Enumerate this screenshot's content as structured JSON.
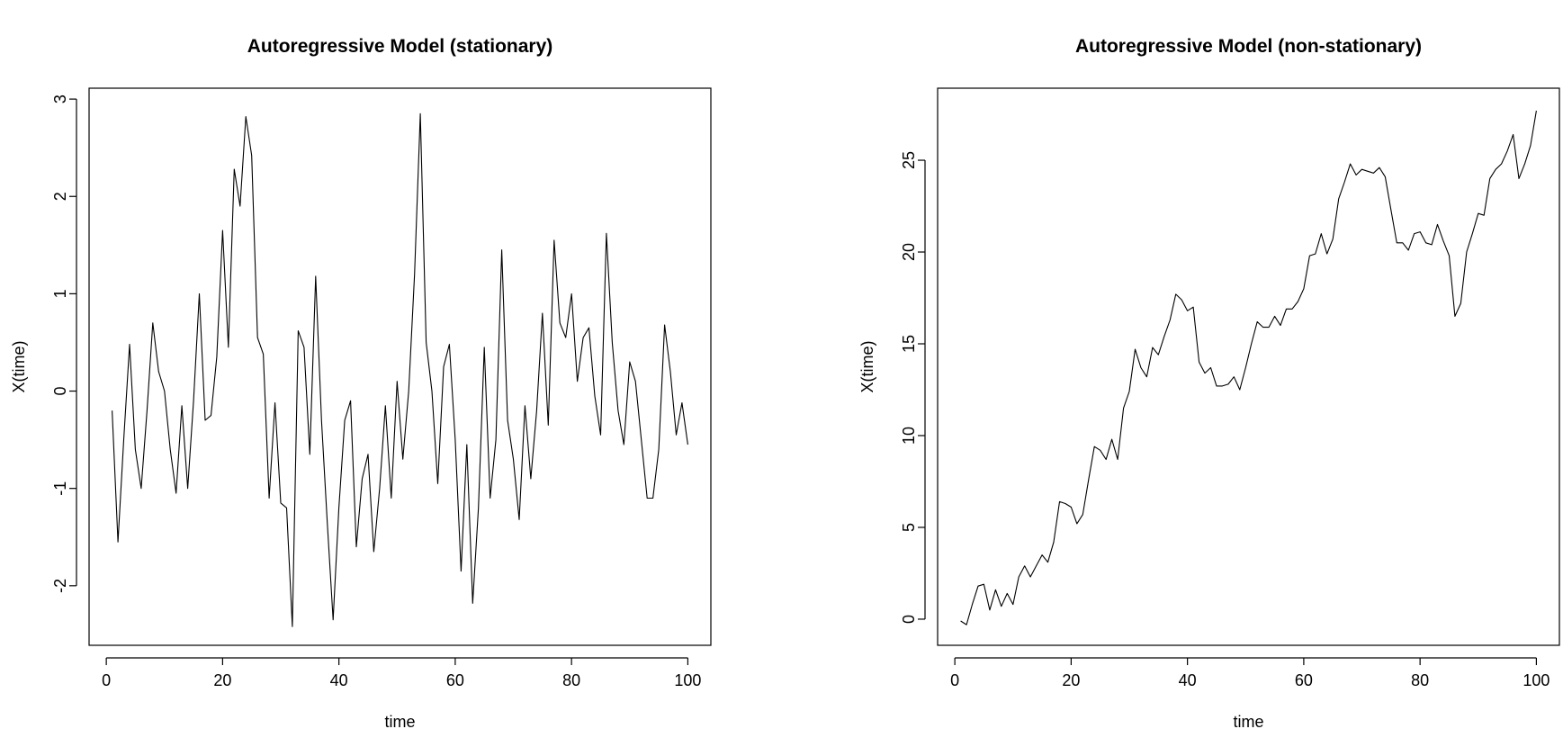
{
  "chart_data": [
    {
      "type": "line",
      "title": "Autoregressive Model (stationary)",
      "xlabel": "time",
      "ylabel": "X(time)",
      "xlim": [
        1,
        100
      ],
      "ylim": [
        -2.4,
        2.9
      ],
      "xticks": [
        0,
        20,
        40,
        60,
        80,
        100
      ],
      "yticks": [
        -2,
        -1,
        0,
        1,
        2,
        3
      ],
      "grid": false,
      "x": [
        1,
        2,
        3,
        4,
        5,
        6,
        7,
        8,
        9,
        10,
        11,
        12,
        13,
        14,
        15,
        16,
        17,
        18,
        19,
        20,
        21,
        22,
        23,
        24,
        25,
        26,
        27,
        28,
        29,
        30,
        31,
        32,
        33,
        34,
        35,
        36,
        37,
        38,
        39,
        40,
        41,
        42,
        43,
        44,
        45,
        46,
        47,
        48,
        49,
        50,
        51,
        52,
        53,
        54,
        55,
        56,
        57,
        58,
        59,
        60,
        61,
        62,
        63,
        64,
        65,
        66,
        67,
        68,
        69,
        70,
        71,
        72,
        73,
        74,
        75,
        76,
        77,
        78,
        79,
        80,
        81,
        82,
        83,
        84,
        85,
        86,
        87,
        88,
        89,
        90,
        91,
        92,
        93,
        94,
        95,
        96,
        97,
        98,
        99,
        100
      ],
      "values": [
        -0.2,
        -1.55,
        -0.5,
        0.48,
        -0.6,
        -1.0,
        -0.2,
        0.7,
        0.2,
        0.0,
        -0.6,
        -1.05,
        -0.15,
        -1.0,
        -0.1,
        1.0,
        -0.3,
        -0.25,
        0.35,
        1.65,
        0.45,
        2.28,
        1.9,
        2.82,
        2.42,
        0.55,
        0.38,
        -1.1,
        -0.12,
        -1.15,
        -1.2,
        -2.42,
        0.62,
        0.45,
        -0.65,
        1.18,
        -0.3,
        -1.35,
        -2.35,
        -1.2,
        -0.3,
        -0.1,
        -1.6,
        -0.9,
        -0.65,
        -1.65,
        -1.0,
        -0.15,
        -1.1,
        0.1,
        -0.7,
        0.0,
        1.2,
        2.85,
        0.5,
        0.0,
        -0.95,
        0.25,
        0.48,
        -0.5,
        -1.85,
        -0.55,
        -2.18,
        -1.2,
        0.45,
        -1.1,
        -0.5,
        1.45,
        -0.3,
        -0.7,
        -1.32,
        -0.15,
        -0.9,
        -0.2,
        0.8,
        -0.35,
        1.55,
        0.7,
        0.55,
        1.0,
        0.1,
        0.55,
        0.65,
        -0.05,
        -0.45,
        1.62,
        0.5,
        -0.2,
        -0.55,
        0.3,
        0.1,
        -0.5,
        -1.1,
        -1.1,
        -0.6,
        0.68,
        0.2,
        -0.45,
        -0.12,
        -0.55
      ]
    },
    {
      "type": "line",
      "title": "Autoregressive Model (non-stationary)",
      "xlabel": "time",
      "ylabel": "X(time)",
      "xlim": [
        1,
        100
      ],
      "ylim": [
        -0.3,
        27.8
      ],
      "xticks": [
        0,
        20,
        40,
        60,
        80,
        100
      ],
      "yticks": [
        0,
        5,
        10,
        15,
        20,
        25
      ],
      "grid": false,
      "x": [
        1,
        2,
        3,
        4,
        5,
        6,
        7,
        8,
        9,
        10,
        11,
        12,
        13,
        14,
        15,
        16,
        17,
        18,
        19,
        20,
        21,
        22,
        23,
        24,
        25,
        26,
        27,
        28,
        29,
        30,
        31,
        32,
        33,
        34,
        35,
        36,
        37,
        38,
        39,
        40,
        41,
        42,
        43,
        44,
        45,
        46,
        47,
        48,
        49,
        50,
        51,
        52,
        53,
        54,
        55,
        56,
        57,
        58,
        59,
        60,
        61,
        62,
        63,
        64,
        65,
        66,
        67,
        68,
        69,
        70,
        71,
        72,
        73,
        74,
        75,
        76,
        77,
        78,
        79,
        80,
        81,
        82,
        83,
        84,
        85,
        86,
        87,
        88,
        89,
        90,
        91,
        92,
        93,
        94,
        95,
        96,
        97,
        98,
        99,
        100
      ],
      "values": [
        -0.1,
        -0.3,
        0.8,
        1.8,
        1.9,
        0.5,
        1.6,
        0.7,
        1.4,
        0.8,
        2.3,
        2.9,
        2.3,
        2.9,
        3.5,
        3.1,
        4.2,
        6.4,
        6.3,
        6.1,
        5.2,
        5.7,
        7.6,
        9.4,
        9.2,
        8.7,
        9.8,
        8.7,
        11.5,
        12.4,
        14.7,
        13.7,
        13.2,
        14.8,
        14.4,
        15.4,
        16.3,
        17.7,
        17.4,
        16.8,
        17.0,
        14.0,
        13.4,
        13.7,
        12.7,
        12.7,
        12.8,
        13.2,
        12.5,
        13.7,
        15.0,
        16.2,
        15.9,
        15.9,
        16.5,
        16.0,
        16.9,
        16.9,
        17.3,
        18.0,
        19.8,
        19.9,
        21.0,
        19.9,
        20.7,
        22.9,
        23.8,
        24.8,
        24.2,
        24.5,
        24.4,
        24.3,
        24.6,
        24.1,
        22.3,
        20.5,
        20.5,
        20.1,
        21.0,
        21.1,
        20.5,
        20.4,
        21.5,
        20.6,
        19.8,
        16.5,
        17.2,
        20.0,
        21.0,
        22.1,
        22.0,
        24.0,
        24.5,
        24.8,
        25.5,
        26.4,
        24.0,
        24.8,
        25.8,
        27.7
      ]
    }
  ]
}
